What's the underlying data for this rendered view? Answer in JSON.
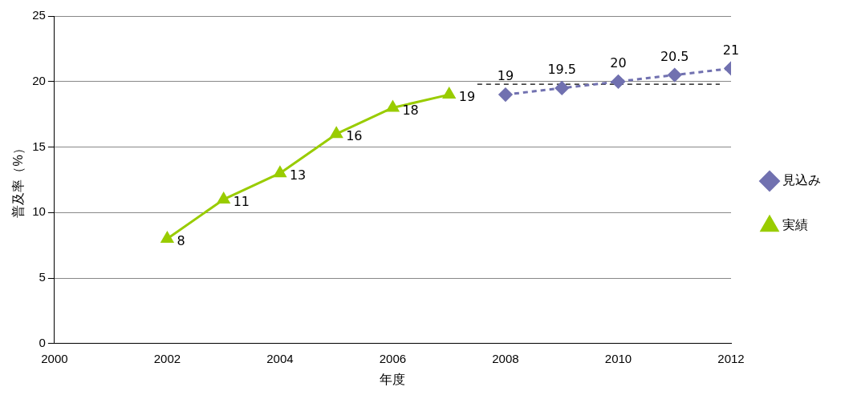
{
  "chart_data": {
    "type": "line",
    "xlabel": "年度",
    "ylabel": "普及率（%）",
    "xlim": [
      2000,
      2012
    ],
    "xticks": [
      2000,
      2002,
      2004,
      2006,
      2008,
      2010,
      2012
    ],
    "ylim": [
      0,
      25
    ],
    "yticks": [
      0,
      5,
      10,
      15,
      20,
      25
    ],
    "grid": "y",
    "legend": "right",
    "series": [
      {
        "name": "見込み",
        "color": "#7171b0",
        "marker": "diamond",
        "line_style": "dashed",
        "x": [
          2008,
          2009,
          2010,
          2011,
          2012
        ],
        "values": [
          19,
          19.5,
          20,
          20.5,
          21
        ],
        "value_labels": [
          "19",
          "19.5",
          "20",
          "20.5",
          "21"
        ]
      },
      {
        "name": "実績",
        "color": "#99cc00",
        "marker": "triangle",
        "line_style": "solid",
        "x": [
          2002,
          2003,
          2004,
          2005,
          2006,
          2007
        ],
        "values": [
          8,
          11,
          13,
          16,
          18,
          19
        ],
        "value_labels": [
          "8",
          "11",
          "13",
          "16",
          "18",
          "19"
        ]
      },
      {
        "color": "#000000",
        "marker": "none",
        "line_style": "dashed",
        "x": [
          2007.5,
          2011.8
        ],
        "values": [
          19.8,
          19.8
        ]
      }
    ]
  }
}
